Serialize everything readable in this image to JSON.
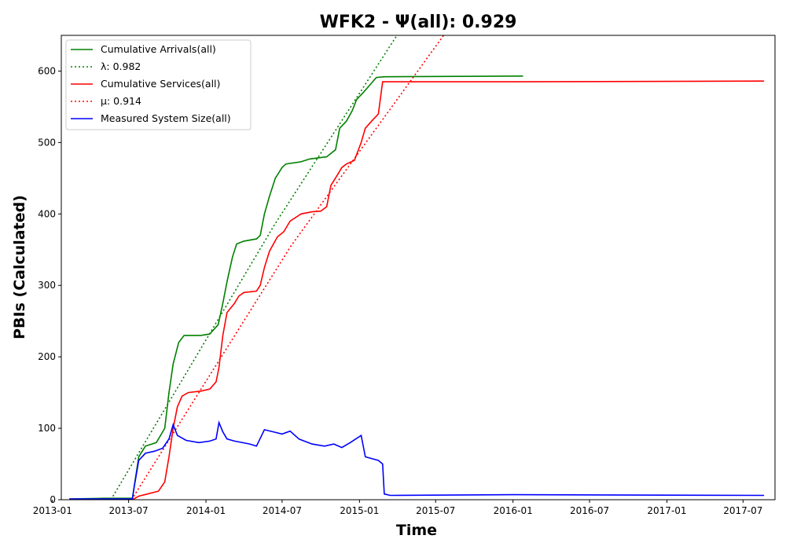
{
  "chart_data": {
    "type": "line",
    "title": "WFK2 -  Ψ(all): 0.929",
    "xlabel": "Time",
    "ylabel": "PBIs (Calculated)",
    "xlim": [
      "2013-01-22",
      "2017-09-15"
    ],
    "ylim": [
      0,
      650
    ],
    "x_ticks": [
      "2013-01",
      "2013-07",
      "2014-01",
      "2014-07",
      "2015-01",
      "2015-07",
      "2016-01",
      "2016-07",
      "2017-01",
      "2017-07"
    ],
    "y_ticks": [
      0,
      100,
      200,
      300,
      400,
      500,
      600
    ],
    "legend_position": "upper-left",
    "grid": false,
    "series": [
      {
        "name": "Cumulative Arrivals(all)",
        "color": "#008000",
        "style": "solid",
        "points": [
          [
            "2013-02-10",
            1
          ],
          [
            "2013-05-01",
            2
          ],
          [
            "2013-07-10",
            2
          ],
          [
            "2013-07-25",
            60
          ],
          [
            "2013-08-10",
            75
          ],
          [
            "2013-09-05",
            80
          ],
          [
            "2013-09-25",
            100
          ],
          [
            "2013-10-05",
            150
          ],
          [
            "2013-10-15",
            190
          ],
          [
            "2013-10-28",
            220
          ],
          [
            "2013-11-10",
            230
          ],
          [
            "2013-12-20",
            230
          ],
          [
            "2014-01-10",
            232
          ],
          [
            "2014-01-30",
            245
          ],
          [
            "2014-02-10",
            275
          ],
          [
            "2014-02-20",
            305
          ],
          [
            "2014-03-05",
            340
          ],
          [
            "2014-03-15",
            358
          ],
          [
            "2014-04-01",
            362
          ],
          [
            "2014-05-01",
            365
          ],
          [
            "2014-05-10",
            370
          ],
          [
            "2014-05-20",
            400
          ],
          [
            "2014-06-01",
            425
          ],
          [
            "2014-06-15",
            450
          ],
          [
            "2014-07-01",
            465
          ],
          [
            "2014-07-10",
            470
          ],
          [
            "2014-08-15",
            473
          ],
          [
            "2014-09-05",
            477
          ],
          [
            "2014-10-15",
            480
          ],
          [
            "2014-11-05",
            490
          ],
          [
            "2014-11-15",
            520
          ],
          [
            "2014-12-01",
            530
          ],
          [
            "2014-12-15",
            545
          ],
          [
            "2014-12-25",
            560
          ],
          [
            "2015-01-10",
            570
          ],
          [
            "2015-01-25",
            580
          ],
          [
            "2015-02-10",
            591
          ],
          [
            "2015-03-01",
            592
          ],
          [
            "2016-01-25",
            593
          ]
        ]
      },
      {
        "name": "λ: 0.982",
        "color": "#008000",
        "style": "dotted",
        "points": [
          [
            "2013-05-20",
            0
          ],
          [
            "2014-06-12",
            384
          ],
          [
            "2015-03-31",
            650
          ]
        ]
      },
      {
        "name": "Cumulative Services(all)",
        "color": "#ff0000",
        "style": "solid",
        "points": [
          [
            "2013-07-10",
            0
          ],
          [
            "2013-07-25",
            5
          ],
          [
            "2013-08-15",
            8
          ],
          [
            "2013-09-10",
            12
          ],
          [
            "2013-09-25",
            25
          ],
          [
            "2013-10-05",
            60
          ],
          [
            "2013-10-15",
            100
          ],
          [
            "2013-10-25",
            130
          ],
          [
            "2013-11-05",
            145
          ],
          [
            "2013-11-20",
            150
          ],
          [
            "2013-12-20",
            152
          ],
          [
            "2014-01-10",
            155
          ],
          [
            "2014-01-25",
            165
          ],
          [
            "2014-02-01",
            185
          ],
          [
            "2014-02-10",
            230
          ],
          [
            "2014-02-20",
            262
          ],
          [
            "2014-03-10",
            275
          ],
          [
            "2014-03-20",
            285
          ],
          [
            "2014-04-01",
            290
          ],
          [
            "2014-05-01",
            292
          ],
          [
            "2014-05-10",
            300
          ],
          [
            "2014-05-20",
            325
          ],
          [
            "2014-06-01",
            348
          ],
          [
            "2014-06-20",
            368
          ],
          [
            "2014-07-05",
            375
          ],
          [
            "2014-07-20",
            390
          ],
          [
            "2014-08-15",
            400
          ],
          [
            "2014-09-10",
            403
          ],
          [
            "2014-10-01",
            404
          ],
          [
            "2014-10-15",
            410
          ],
          [
            "2014-10-25",
            440
          ],
          [
            "2014-11-10",
            455
          ],
          [
            "2014-11-20",
            465
          ],
          [
            "2014-12-01",
            470
          ],
          [
            "2014-12-20",
            475
          ],
          [
            "2015-01-05",
            500
          ],
          [
            "2015-01-15",
            520
          ],
          [
            "2015-01-30",
            530
          ],
          [
            "2015-02-15",
            540
          ],
          [
            "2015-02-25",
            585
          ],
          [
            "2015-04-01",
            585
          ],
          [
            "2016-01-01",
            585
          ],
          [
            "2017-08-01",
            586
          ],
          [
            "2017-08-20",
            586
          ]
        ]
      },
      {
        "name": "μ: 0.914",
        "color": "#ff0000",
        "style": "dotted",
        "points": [
          [
            "2013-07-08",
            0
          ],
          [
            "2014-07-22",
            355
          ],
          [
            "2015-07-20",
            650
          ]
        ]
      },
      {
        "name": "Measured System Size(all)",
        "color": "#0000ff",
        "style": "solid",
        "points": [
          [
            "2013-02-10",
            1
          ],
          [
            "2013-07-10",
            1
          ],
          [
            "2013-07-15",
            20
          ],
          [
            "2013-07-25",
            55
          ],
          [
            "2013-08-10",
            65
          ],
          [
            "2013-09-01",
            68
          ],
          [
            "2013-09-20",
            72
          ],
          [
            "2013-10-05",
            85
          ],
          [
            "2013-10-15",
            105
          ],
          [
            "2013-10-25",
            90
          ],
          [
            "2013-11-15",
            83
          ],
          [
            "2013-12-15",
            80
          ],
          [
            "2014-01-10",
            82
          ],
          [
            "2014-01-25",
            85
          ],
          [
            "2014-02-01",
            108
          ],
          [
            "2014-02-10",
            95
          ],
          [
            "2014-02-20",
            85
          ],
          [
            "2014-03-10",
            82
          ],
          [
            "2014-04-15",
            78
          ],
          [
            "2014-05-01",
            75
          ],
          [
            "2014-05-20",
            98
          ],
          [
            "2014-06-10",
            95
          ],
          [
            "2014-07-01",
            92
          ],
          [
            "2014-07-20",
            96
          ],
          [
            "2014-08-10",
            85
          ],
          [
            "2014-09-10",
            78
          ],
          [
            "2014-10-10",
            75
          ],
          [
            "2014-11-01",
            78
          ],
          [
            "2014-11-20",
            73
          ],
          [
            "2014-12-10",
            80
          ],
          [
            "2015-01-05",
            90
          ],
          [
            "2015-01-15",
            60
          ],
          [
            "2015-02-15",
            55
          ],
          [
            "2015-02-25",
            50
          ],
          [
            "2015-03-01",
            8
          ],
          [
            "2015-03-15",
            6
          ],
          [
            "2016-01-01",
            7
          ],
          [
            "2017-08-20",
            6
          ]
        ]
      }
    ]
  }
}
